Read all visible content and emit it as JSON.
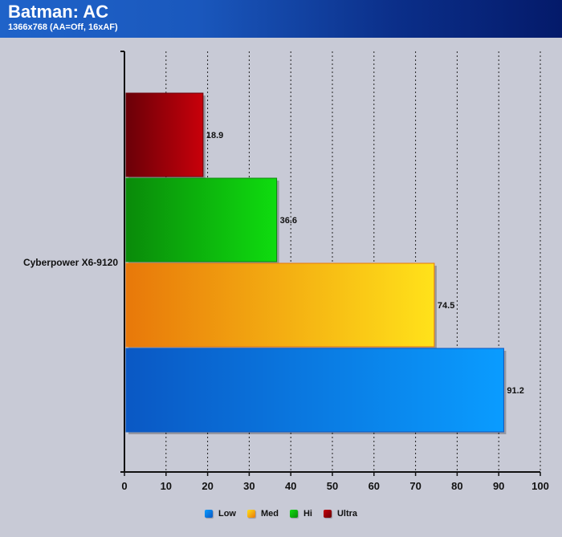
{
  "header": {
    "title": "Batman: AC",
    "subtitle": "1366x768 (AA=Off, 16xAF)"
  },
  "chart_data": {
    "type": "bar",
    "orientation": "horizontal",
    "categories": [
      "Cyberpower X6-9120"
    ],
    "series": [
      {
        "name": "Ultra",
        "values": [
          18.9
        ],
        "color": "#c8000a",
        "color_dark": "#6a0008"
      },
      {
        "name": "Hi",
        "values": [
          36.6
        ],
        "color": "#0fdc0f",
        "color_dark": "#0a8a0a"
      },
      {
        "name": "Med",
        "values": [
          74.5
        ],
        "color": "#ffe21a",
        "color_dark": "#e8780a"
      },
      {
        "name": "Low",
        "values": [
          91.2
        ],
        "color": "#0a9cff",
        "color_dark": "#0a58c4"
      }
    ],
    "xlim": [
      0,
      100
    ],
    "x_ticks": [
      0,
      10,
      20,
      30,
      40,
      50,
      60,
      70,
      80,
      90,
      100
    ],
    "grid": "vertical-dashed",
    "legend": {
      "position": "bottom",
      "order": [
        "Low",
        "Med",
        "Hi",
        "Ultra"
      ]
    }
  }
}
